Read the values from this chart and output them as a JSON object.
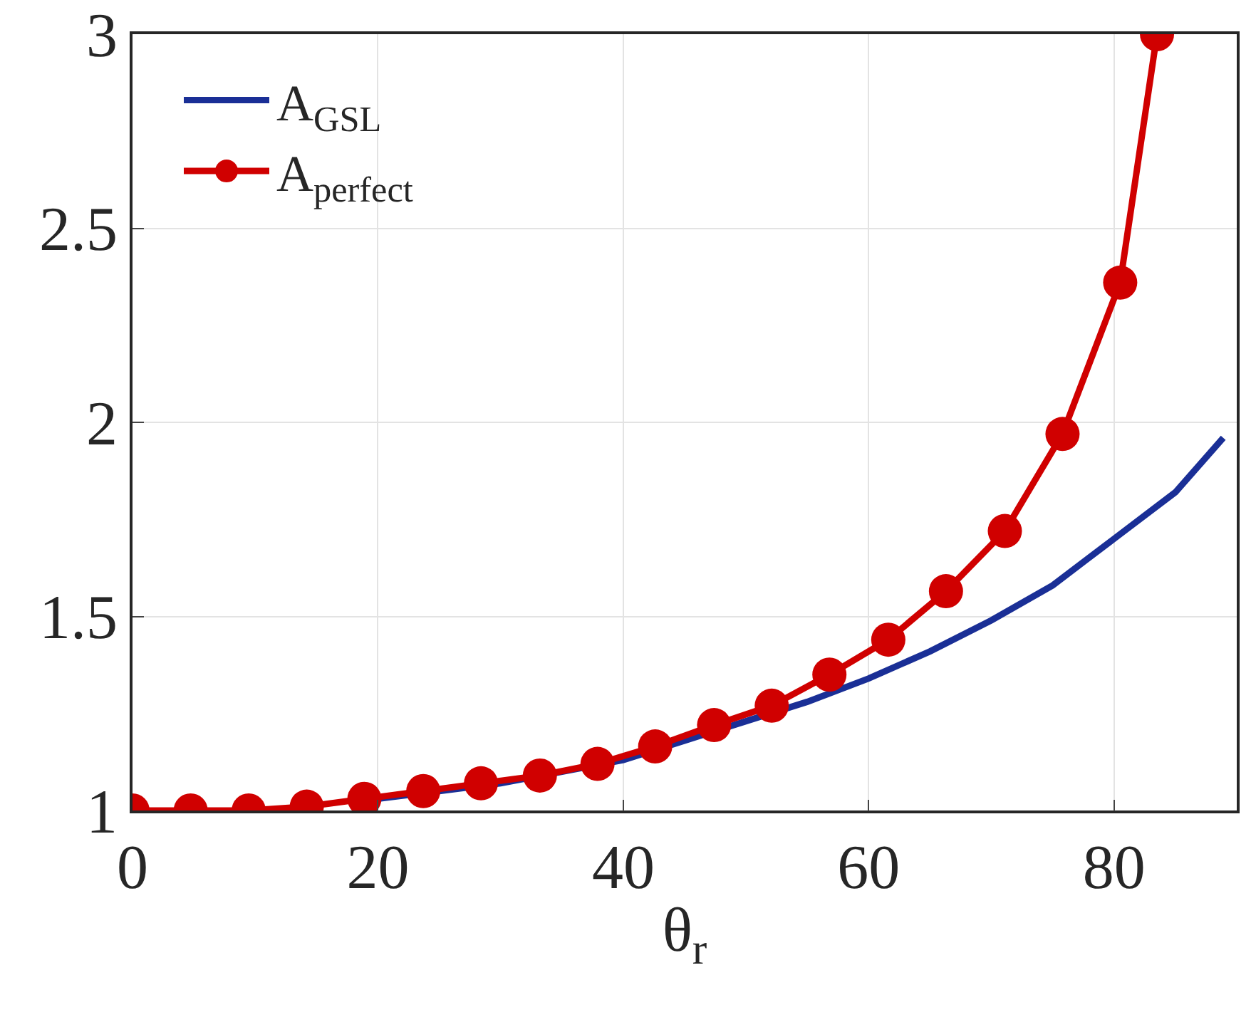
{
  "chart_data": {
    "type": "line",
    "xlabel": "θ$_{r}$",
    "xlim": [
      0,
      90
    ],
    "ylim": [
      1,
      3
    ],
    "xticks": [
      0,
      20,
      40,
      60,
      80
    ],
    "yticks": [
      1,
      1.5,
      2,
      2.5,
      3
    ],
    "grid": true,
    "legend": "top left",
    "series": [
      {
        "name": "A$_{GSL}$",
        "color": "#1a2f96",
        "marker": "none",
        "x": [
          20,
          25,
          30,
          35,
          40,
          45,
          50,
          55,
          60,
          65,
          70,
          75,
          80,
          85,
          88.9
        ],
        "values": [
          1.03,
          1.05,
          1.07,
          1.1,
          1.13,
          1.18,
          1.23,
          1.28,
          1.34,
          1.41,
          1.49,
          1.58,
          1.7,
          1.82,
          1.96
        ]
      },
      {
        "name": "A$_{perfect}$",
        "color": "#d00000",
        "marker": "circle",
        "x": [
          0,
          4.74,
          9.47,
          14.2,
          18.9,
          23.7,
          28.4,
          33.2,
          37.9,
          42.6,
          47.4,
          52.1,
          56.8,
          61.6,
          66.3,
          71.1,
          75.8,
          80.5,
          83.5
        ],
        "values": [
          1.0,
          1.0,
          1.0,
          1.01,
          1.03,
          1.05,
          1.07,
          1.09,
          1.12,
          1.165,
          1.22,
          1.27,
          1.35,
          1.44,
          1.565,
          1.72,
          1.97,
          2.36,
          3.0
        ]
      }
    ]
  }
}
